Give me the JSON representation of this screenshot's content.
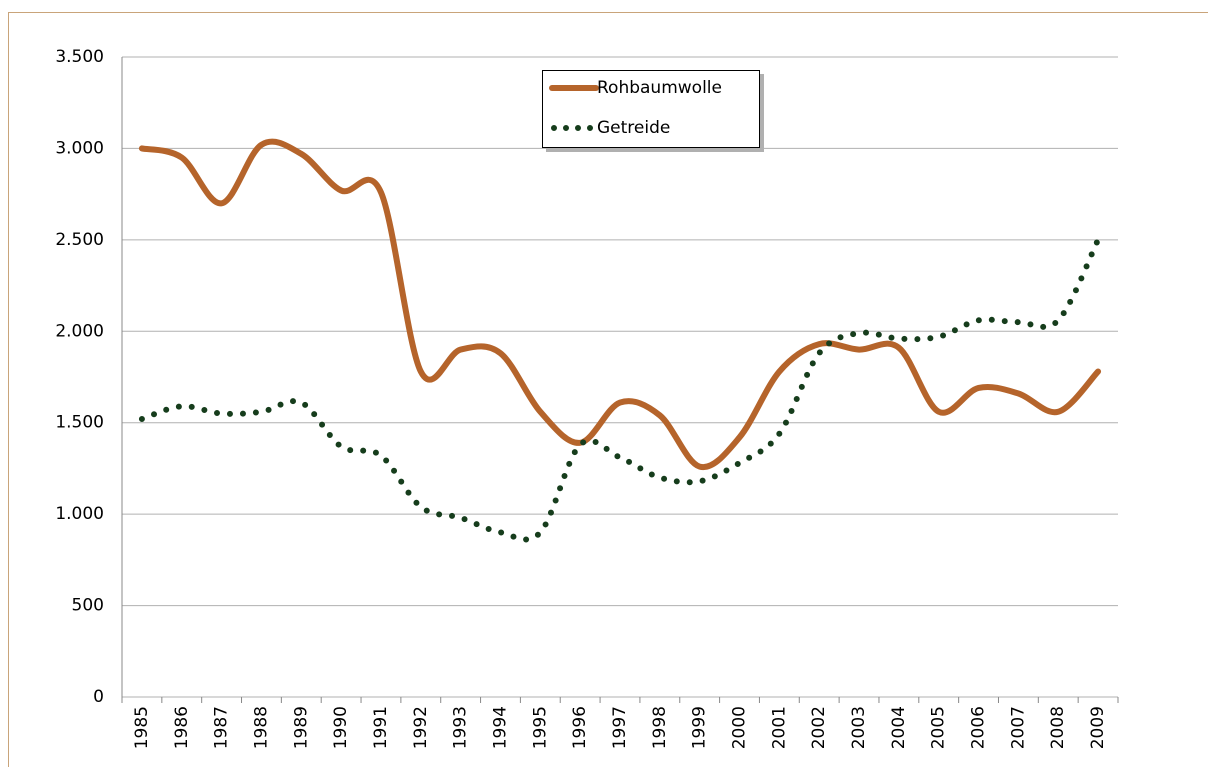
{
  "chart_data": {
    "type": "line",
    "categories": [
      "1985",
      "1986",
      "1987",
      "1988",
      "1989",
      "1990",
      "1991",
      "1992",
      "1993",
      "1994",
      "1995",
      "1996",
      "1997",
      "1998",
      "1999",
      "2000",
      "2001",
      "2002",
      "2003",
      "2004",
      "2005",
      "2006",
      "2007",
      "2008",
      "2009"
    ],
    "series": [
      {
        "name": "Rohbaumwolle",
        "color": "#b5642b",
        "style": "solid",
        "values": [
          3000,
          2950,
          2700,
          3020,
          2970,
          2770,
          2760,
          1780,
          1900,
          1880,
          1560,
          1390,
          1610,
          1540,
          1260,
          1420,
          1780,
          1930,
          1900,
          1910,
          1560,
          1690,
          1660,
          1560,
          1780
        ]
      },
      {
        "name": "Getreide",
        "color": "#163d1c",
        "style": "dotted",
        "values": [
          1520,
          1590,
          1550,
          1560,
          1610,
          1370,
          1320,
          1040,
          980,
          900,
          900,
          1380,
          1310,
          1200,
          1180,
          1280,
          1440,
          1880,
          1990,
          1960,
          1970,
          2060,
          2050,
          2060,
          2500
        ]
      }
    ],
    "ylim": [
      0,
      3500
    ],
    "yticks": [
      0,
      500,
      {
        "value": 1000,
        "label": "1.000"
      },
      {
        "value": 1500,
        "label": "1.500"
      },
      {
        "value": 2000,
        "label": "2.000"
      },
      {
        "value": 2500,
        "label": "2.500"
      },
      {
        "value": 3000,
        "label": "3.000"
      },
      {
        "value": 3500,
        "label": "3.500"
      }
    ],
    "grid": true
  }
}
